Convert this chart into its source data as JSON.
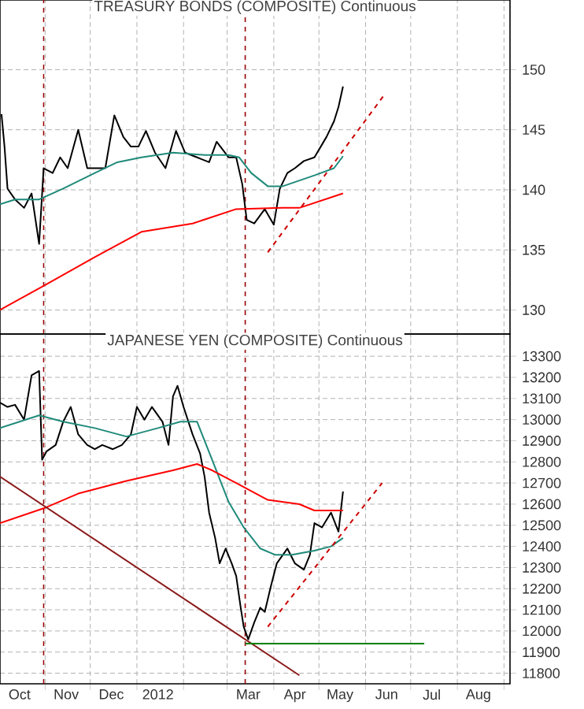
{
  "chart_data": [
    {
      "type": "line",
      "title": "TREASURY BONDS (COMPOSITE) Continuous",
      "xlim": [
        "2011-10-02",
        "2012-09-05"
      ],
      "ylim": [
        128,
        155.8
      ],
      "yticks": [
        130,
        135,
        140,
        145,
        150
      ],
      "grid": true,
      "tick_labels": "y",
      "xticks": [
        {
          "value": "2011-11-01",
          "label": null
        },
        {
          "value": "2011-12-01",
          "label": null
        },
        {
          "value": "2012-01-01",
          "label": null
        },
        {
          "value": "2012-02-01",
          "label": null
        },
        {
          "value": "2012-03-01",
          "label": null
        },
        {
          "value": "2012-04-01",
          "label": null
        },
        {
          "value": "2012-05-01",
          "label": null
        },
        {
          "value": "2012-06-01",
          "label": null
        },
        {
          "value": "2012-07-01",
          "label": null
        },
        {
          "value": "2012-08-01",
          "label": null
        },
        {
          "value": "2012-09-01",
          "label": null
        }
      ],
      "ref_lines": [
        {
          "axis": "x",
          "value": "2011-10-31",
          "color": "#990000",
          "line_style": "dashed"
        },
        {
          "axis": "x",
          "value": "2012-03-13",
          "color": "#990000",
          "line_style": "dashed"
        }
      ],
      "series": [
        {
          "color": "#000000",
          "x": [
            "2011-10-03",
            "2011-10-05",
            "2011-10-07",
            "2011-10-12",
            "2011-10-18",
            "2011-10-23",
            "2011-10-28",
            "2011-10-31",
            "2011-11-06",
            "2011-11-11",
            "2011-11-16",
            "2011-11-23",
            "2011-11-29",
            "2011-12-04",
            "2011-12-11",
            "2011-12-17",
            "2011-12-23",
            "2011-12-28",
            "2012-01-02",
            "2012-01-07",
            "2012-01-13",
            "2012-01-20",
            "2012-01-27",
            "2012-02-02",
            "2012-02-10",
            "2012-02-18",
            "2012-02-23",
            "2012-03-02",
            "2012-03-07",
            "2012-03-11",
            "2012-03-14",
            "2012-03-19",
            "2012-03-26",
            "2012-04-01",
            "2012-04-05",
            "2012-04-10",
            "2012-04-15",
            "2012-04-21",
            "2012-04-28",
            "2012-05-06",
            "2012-05-11",
            "2012-05-14",
            "2012-05-17"
          ],
          "values": [
            146.3,
            143.6,
            140.1,
            139.2,
            138.5,
            139.7,
            135.5,
            141.8,
            141.4,
            142.7,
            141.8,
            145.0,
            141.8,
            141.8,
            141.8,
            146.2,
            144.4,
            143.6,
            143.6,
            144.9,
            143.1,
            141.8,
            144.9,
            143.1,
            142.7,
            142.3,
            144.0,
            142.7,
            142.7,
            140.5,
            137.5,
            137.2,
            138.4,
            137.1,
            140.1,
            141.4,
            141.8,
            142.4,
            142.7,
            144.4,
            145.7,
            146.9,
            148.6
          ]
        },
        {
          "color": "#1f8a7a",
          "x": [
            "2011-10-02",
            "2011-10-12",
            "2011-10-28",
            "2011-11-13",
            "2011-12-04",
            "2011-12-19",
            "2012-01-04",
            "2012-01-25",
            "2012-02-15",
            "2012-03-02",
            "2012-03-09",
            "2012-03-17",
            "2012-03-28",
            "2012-04-07",
            "2012-04-28",
            "2012-05-11",
            "2012-05-17"
          ],
          "values": [
            138.8,
            139.2,
            139.2,
            140.1,
            141.4,
            142.3,
            142.7,
            143.1,
            142.9,
            142.9,
            142.7,
            141.4,
            140.3,
            140.3,
            141.2,
            141.8,
            142.8
          ]
        },
        {
          "color": "#ff0000",
          "x": [
            "2011-10-02",
            "2011-10-31",
            "2011-12-04",
            "2012-01-04",
            "2012-02-07",
            "2012-03-07",
            "2012-04-07",
            "2012-04-18",
            "2012-05-17"
          ],
          "values": [
            130.0,
            132.0,
            134.4,
            136.5,
            137.2,
            138.4,
            138.5,
            138.5,
            139.7
          ]
        },
        {
          "color": "#cc0000",
          "line_style": "dashed",
          "x": [
            "2012-03-28",
            "2012-06-14"
          ],
          "values": [
            134.8,
            148.0
          ]
        }
      ]
    },
    {
      "type": "line",
      "title": "JAPANESE YEN (COMPOSITE) Continuous",
      "xlim": [
        "2011-10-02",
        "2012-09-05"
      ],
      "ylim": [
        11750,
        13405
      ],
      "yticks": [
        11800,
        11900,
        12000,
        12100,
        12200,
        12300,
        12400,
        12500,
        12600,
        12700,
        12800,
        12900,
        13000,
        13100,
        13200,
        13300
      ],
      "grid": true,
      "xticks": [
        {
          "value": "2011-10-15",
          "label": "Oct"
        },
        {
          "value": "2011-11-01",
          "label": null
        },
        {
          "value": "2011-11-15",
          "label": "Nov"
        },
        {
          "value": "2011-12-01",
          "label": null
        },
        {
          "value": "2011-12-15",
          "label": "Dec"
        },
        {
          "value": "2012-01-01",
          "label": null
        },
        {
          "value": "2012-01-15",
          "label": "2012"
        },
        {
          "value": "2012-02-01",
          "label": null
        },
        {
          "value": "2012-03-01",
          "label": null
        },
        {
          "value": "2012-03-15",
          "label": "Mar"
        },
        {
          "value": "2012-04-01",
          "label": null
        },
        {
          "value": "2012-04-15",
          "label": "Apr"
        },
        {
          "value": "2012-05-01",
          "label": null
        },
        {
          "value": "2012-05-15",
          "label": "May"
        },
        {
          "value": "2012-06-01",
          "label": null
        },
        {
          "value": "2012-06-15",
          "label": "Jun"
        },
        {
          "value": "2012-07-01",
          "label": null
        },
        {
          "value": "2012-07-15",
          "label": "Jul"
        },
        {
          "value": "2012-08-01",
          "label": null
        },
        {
          "value": "2012-08-15",
          "label": "Aug"
        },
        {
          "value": "2012-09-01",
          "label": null
        }
      ],
      "ref_lines": [
        {
          "axis": "x",
          "value": "2011-10-31",
          "color": "#990000",
          "line_style": "dashed"
        },
        {
          "axis": "x",
          "value": "2012-03-13",
          "color": "#990000",
          "line_style": "dashed"
        }
      ],
      "series": [
        {
          "color": "#000000",
          "x": [
            "2011-10-02",
            "2011-10-07",
            "2011-10-12",
            "2011-10-18",
            "2011-10-23",
            "2011-10-28",
            "2011-10-30",
            "2011-11-02",
            "2011-11-08",
            "2011-11-13",
            "2011-11-18",
            "2011-11-23",
            "2011-11-29",
            "2011-12-04",
            "2011-12-09",
            "2011-12-16",
            "2011-12-22",
            "2011-12-28",
            "2012-01-01",
            "2012-01-06",
            "2012-01-11",
            "2012-01-18",
            "2012-01-22",
            "2012-01-25",
            "2012-01-28",
            "2012-02-01",
            "2012-02-07",
            "2012-02-12",
            "2012-02-15",
            "2012-02-18",
            "2012-02-22",
            "2012-02-25",
            "2012-02-29",
            "2012-03-04",
            "2012-03-07",
            "2012-03-10",
            "2012-03-12",
            "2012-03-15",
            "2012-03-19",
            "2012-03-23",
            "2012-03-26",
            "2012-03-30",
            "2012-04-03",
            "2012-04-07",
            "2012-04-10",
            "2012-04-15",
            "2012-04-21",
            "2012-04-25",
            "2012-04-28",
            "2012-05-03",
            "2012-05-09",
            "2012-05-14",
            "2012-05-17"
          ],
          "values": [
            13080,
            13060,
            13070,
            13000,
            13210,
            13230,
            12810,
            12850,
            12880,
            12990,
            13060,
            12930,
            12880,
            12860,
            12880,
            12860,
            12880,
            12930,
            13060,
            13000,
            13060,
            12990,
            12880,
            13110,
            13160,
            13060,
            12930,
            12840,
            12730,
            12560,
            12440,
            12320,
            12390,
            12320,
            12260,
            12110,
            12020,
            11960,
            12040,
            12110,
            12090,
            12210,
            12320,
            12360,
            12390,
            12320,
            12290,
            12360,
            12510,
            12490,
            12560,
            12470,
            12660
          ]
        },
        {
          "color": "#1f8a7a",
          "x": [
            "2011-10-02",
            "2011-10-28",
            "2011-11-13",
            "2011-12-04",
            "2011-12-25",
            "2012-01-15",
            "2012-01-30",
            "2012-02-10",
            "2012-02-20",
            "2012-03-02",
            "2012-03-12",
            "2012-03-23",
            "2012-04-02",
            "2012-04-13",
            "2012-04-28",
            "2012-05-09",
            "2012-05-17"
          ],
          "values": [
            12960,
            13020,
            12990,
            12960,
            12920,
            12960,
            12990,
            12990,
            12810,
            12610,
            12490,
            12390,
            12360,
            12360,
            12380,
            12400,
            12440
          ]
        },
        {
          "color": "#ff0000",
          "x": [
            "2011-10-02",
            "2011-10-31",
            "2011-11-23",
            "2011-12-25",
            "2012-01-25",
            "2012-02-10",
            "2012-02-20",
            "2012-03-07",
            "2012-03-28",
            "2012-04-18",
            "2012-04-28",
            "2012-05-17"
          ],
          "values": [
            12510,
            12580,
            12650,
            12710,
            12760,
            12790,
            12760,
            12700,
            12620,
            12600,
            12570,
            12570
          ]
        },
        {
          "color": "#8b1a1a",
          "x": [
            "2011-10-02",
            "2012-04-18"
          ],
          "values": [
            12730,
            11790
          ]
        },
        {
          "color": "#008000",
          "x": [
            "2012-03-13",
            "2012-07-10"
          ],
          "values": [
            11940,
            11940
          ]
        },
        {
          "color": "#cc0000",
          "line_style": "dashed",
          "x": [
            "2012-03-28",
            "2012-06-12"
          ],
          "values": [
            12020,
            12700
          ]
        }
      ]
    }
  ]
}
